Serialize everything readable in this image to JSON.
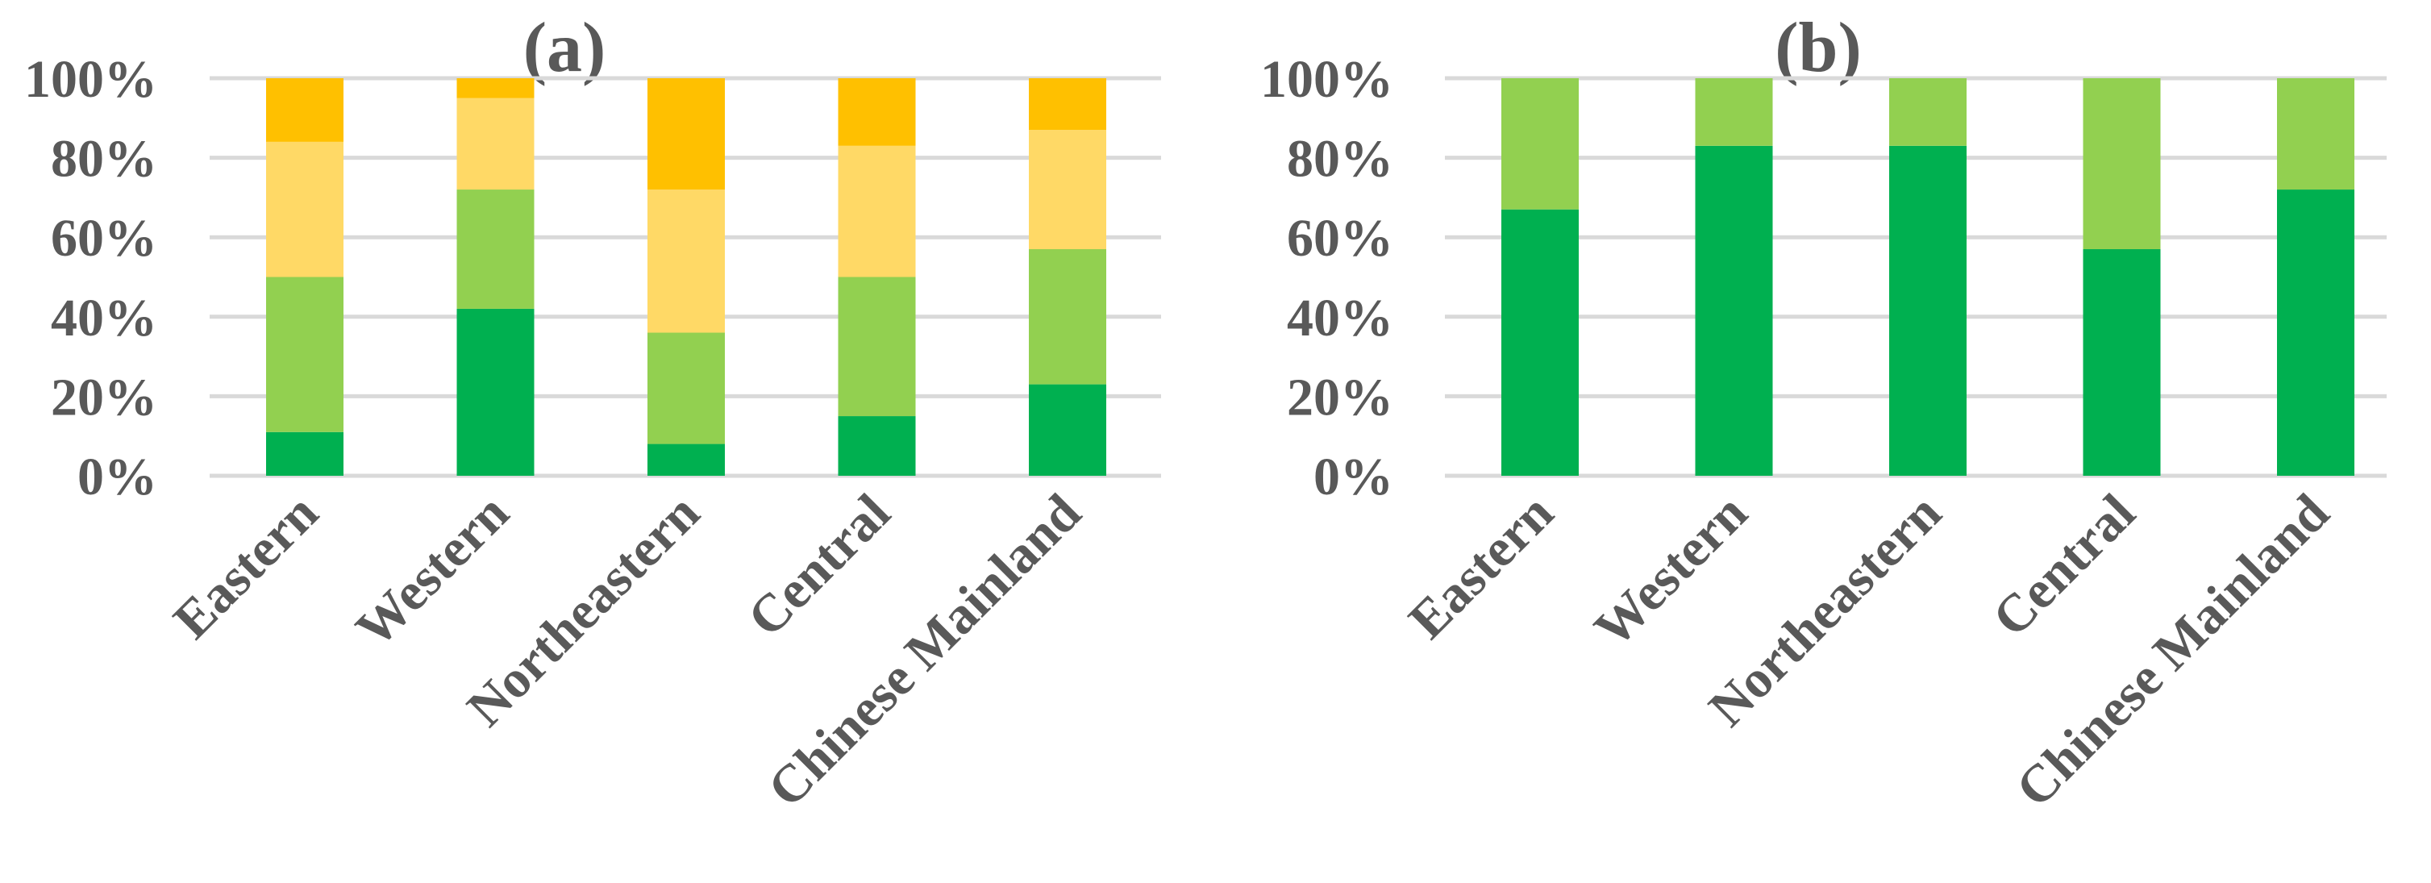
{
  "chart_data": [
    {
      "type": "bar",
      "stacked": true,
      "title": "(a)",
      "categories": [
        "Eastern",
        "Western",
        "Northeastern",
        "Central",
        "Chinese Mainland"
      ],
      "ylim": [
        0,
        100
      ],
      "y_ticks": [
        "0%",
        "20%",
        "40%",
        "60%",
        "80%",
        "100%"
      ],
      "grid": true,
      "legend": "none",
      "series": [
        {
          "color": "#00b050",
          "values": [
            11,
            42,
            8,
            15,
            23
          ]
        },
        {
          "color": "#92d050",
          "values": [
            39,
            30,
            28,
            35,
            34
          ]
        },
        {
          "color": "#ffd966",
          "values": [
            34,
            23,
            36,
            33,
            30
          ]
        },
        {
          "color": "#ffc000",
          "values": [
            16,
            5,
            28,
            17,
            13
          ]
        }
      ]
    },
    {
      "type": "bar",
      "stacked": true,
      "title": "(b)",
      "categories": [
        "Eastern",
        "Western",
        "Northeastern",
        "Central",
        "Chinese Mainland"
      ],
      "ylim": [
        0,
        100
      ],
      "y_ticks": [
        "0%",
        "20%",
        "40%",
        "60%",
        "80%",
        "100%"
      ],
      "grid": true,
      "legend": "none",
      "series": [
        {
          "color": "#00b050",
          "values": [
            67,
            83,
            83,
            57,
            72
          ]
        },
        {
          "color": "#92d050",
          "values": [
            33,
            17,
            17,
            43,
            28
          ]
        }
      ]
    }
  ]
}
